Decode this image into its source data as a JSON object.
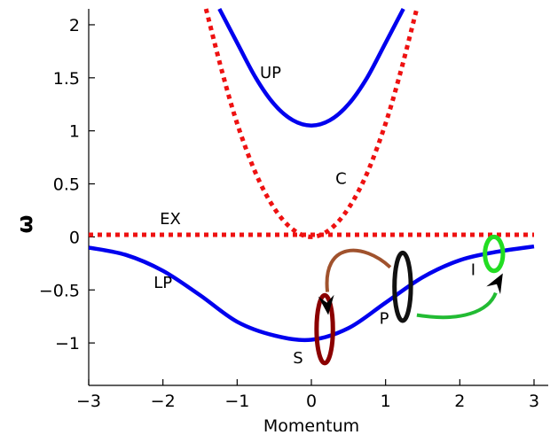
{
  "chart_data": {
    "type": "line",
    "title": "",
    "xlabel": "Momentum",
    "ylabel": "ω",
    "xlim": [
      -3,
      3
    ],
    "ylim": [
      -1.4,
      2.15
    ],
    "x_ticks": [
      -3,
      -2,
      -1,
      0,
      1,
      2,
      3
    ],
    "x_tick_labels": [
      "−3",
      "−2",
      "−1",
      "0",
      "1",
      "2",
      "3"
    ],
    "y_ticks": [
      -1,
      -0.5,
      0,
      0.5,
      1,
      1.5,
      2
    ],
    "y_tick_labels": [
      "−1",
      "−0.5",
      "0",
      "0.5",
      "1",
      "1.5",
      "2"
    ],
    "grid": false,
    "series": [
      {
        "name": "UP",
        "color": "#0000ee",
        "style": "solid",
        "points": [
          [
            -1.24,
            2.15
          ],
          [
            -1.0,
            1.83
          ],
          [
            -0.75,
            1.5
          ],
          [
            -0.5,
            1.25
          ],
          [
            -0.25,
            1.1
          ],
          [
            0,
            1.05
          ],
          [
            0.25,
            1.1
          ],
          [
            0.5,
            1.25
          ],
          [
            0.75,
            1.5
          ],
          [
            1.0,
            1.83
          ],
          [
            1.24,
            2.15
          ]
        ]
      },
      {
        "name": "C",
        "color": "#ee1111",
        "style": "dotted",
        "points": [
          [
            -1.42,
            2.15
          ],
          [
            -1.2,
            1.55
          ],
          [
            -1.0,
            1.07
          ],
          [
            -0.75,
            0.6
          ],
          [
            -0.5,
            0.27
          ],
          [
            -0.25,
            0.07
          ],
          [
            0,
            0.0
          ],
          [
            0.25,
            0.07
          ],
          [
            0.5,
            0.27
          ],
          [
            0.75,
            0.6
          ],
          [
            1.0,
            1.07
          ],
          [
            1.2,
            1.55
          ],
          [
            1.42,
            2.15
          ]
        ]
      },
      {
        "name": "EX",
        "color": "#ee1111",
        "style": "dotted",
        "points": [
          [
            -3,
            0.02
          ],
          [
            3,
            0.02
          ]
        ]
      },
      {
        "name": "LP",
        "color": "#0000ee",
        "style": "solid",
        "points": [
          [
            -3,
            -0.1
          ],
          [
            -2.5,
            -0.17
          ],
          [
            -2.0,
            -0.32
          ],
          [
            -1.5,
            -0.55
          ],
          [
            -1.0,
            -0.8
          ],
          [
            -0.5,
            -0.93
          ],
          [
            0,
            -0.97
          ],
          [
            0.5,
            -0.86
          ],
          [
            1.0,
            -0.62
          ],
          [
            1.5,
            -0.38
          ],
          [
            2.0,
            -0.22
          ],
          [
            2.5,
            -0.14
          ],
          [
            3.0,
            -0.09
          ]
        ]
      }
    ],
    "curve_labels": [
      {
        "text": "UP",
        "x": -0.55,
        "y": 1.5
      },
      {
        "text": "C",
        "x": 0.4,
        "y": 0.5
      },
      {
        "text": "EX",
        "x": -1.9,
        "y": 0.12
      },
      {
        "text": "LP",
        "x": -2.0,
        "y": -0.48
      }
    ],
    "annotations": [
      {
        "text": "S",
        "cx": 0.18,
        "cy": -0.87,
        "rx": 0.2,
        "ry": 0.32,
        "color": "#8b0000",
        "label_x": -0.18,
        "label_y": -1.19
      },
      {
        "text": "P",
        "cx": 1.23,
        "cy": -0.47,
        "rx": 0.2,
        "ry": 0.32,
        "color": "#111111",
        "label_x": 0.98,
        "label_y": -0.82
      },
      {
        "text": "I",
        "cx": 2.46,
        "cy": -0.16,
        "rx": 0.22,
        "ry": 0.16,
        "color": "#22dd22",
        "label_x": 2.18,
        "label_y": -0.36
      }
    ],
    "arrows": [
      {
        "from": "P",
        "to": "S",
        "color": "#a0522d"
      },
      {
        "from": "P",
        "to": "I",
        "color": "#22bb33"
      }
    ]
  }
}
